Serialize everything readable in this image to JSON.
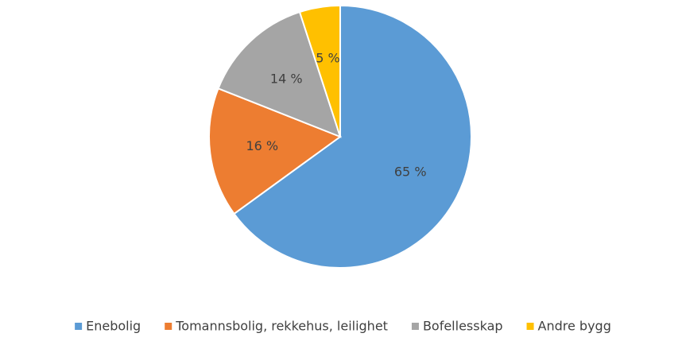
{
  "chart_data": {
    "type": "pie",
    "categories": [
      "Enebolig",
      "Tomannsbolig, rekkehus, leilighet",
      "Bofellesskap",
      "Andre bygg"
    ],
    "values": [
      65,
      16,
      14,
      5
    ],
    "value_labels": [
      "65 %",
      "16 %",
      "14 %",
      "5 %"
    ],
    "colors": [
      "#5b9bd5",
      "#ed7d31",
      "#a5a5a5",
      "#ffc000"
    ],
    "legend": "bottom"
  }
}
